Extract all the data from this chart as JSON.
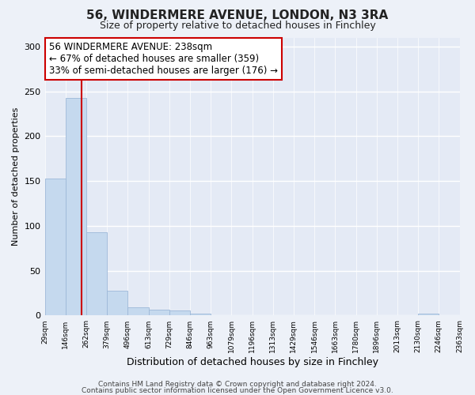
{
  "title_line1": "56, WINDERMERE AVENUE, LONDON, N3 3RA",
  "title_line2": "Size of property relative to detached houses in Finchley",
  "xlabel": "Distribution of detached houses by size in Finchley",
  "ylabel": "Number of detached properties",
  "bin_edges": [
    29,
    146,
    262,
    379,
    496,
    613,
    729,
    846,
    963,
    1079,
    1196,
    1313,
    1429,
    1546,
    1663,
    1780,
    1896,
    2013,
    2130,
    2246,
    2363
  ],
  "bar_heights": [
    153,
    243,
    93,
    28,
    9,
    7,
    6,
    2,
    0,
    0,
    0,
    0,
    0,
    0,
    0,
    0,
    0,
    0,
    2,
    0,
    1
  ],
  "bar_color": "#c5d9ee",
  "bar_edge_color": "#9db8d8",
  "vline_x": 238,
  "vline_color": "#cc0000",
  "annotation_line1": "56 WINDERMERE AVENUE: 238sqm",
  "annotation_line2": "← 67% of detached houses are smaller (359)",
  "annotation_line3": "33% of semi-detached houses are larger (176) →",
  "annotation_box_facecolor": "#ffffff",
  "annotation_box_edgecolor": "#cc0000",
  "ylim": [
    0,
    310
  ],
  "yticks": [
    0,
    50,
    100,
    150,
    200,
    250,
    300
  ],
  "footer_line1": "Contains HM Land Registry data © Crown copyright and database right 2024.",
  "footer_line2": "Contains public sector information licensed under the Open Government Licence v3.0.",
  "fig_facecolor": "#edf1f8",
  "axes_facecolor": "#e4eaf5",
  "grid_color": "#ffffff",
  "title1_fontsize": 11,
  "title2_fontsize": 9,
  "xlabel_fontsize": 9,
  "ylabel_fontsize": 8,
  "xtick_fontsize": 6.5,
  "ytick_fontsize": 8,
  "annotation_fontsize": 8.5,
  "footer_fontsize": 6.5
}
